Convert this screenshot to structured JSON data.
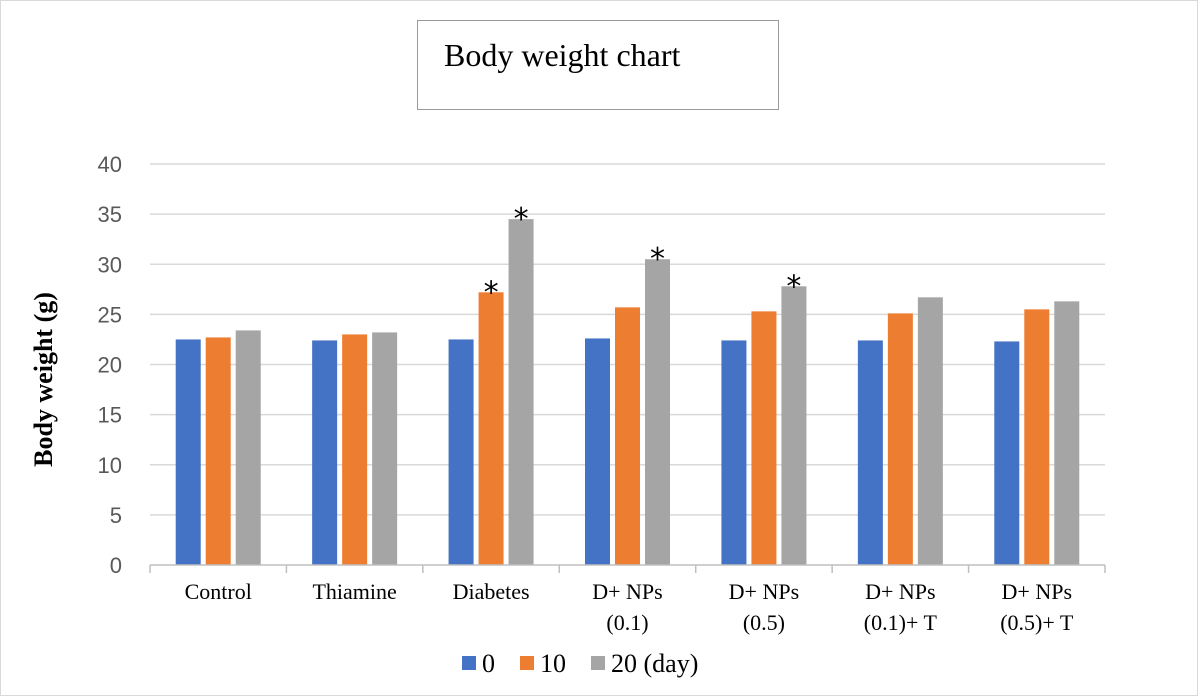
{
  "chart_data": {
    "type": "bar",
    "title": "Body weight chart",
    "xlabel": "",
    "ylabel": "Body weight (g)",
    "ylim": [
      0,
      40
    ],
    "yticks": [
      0,
      5,
      10,
      15,
      20,
      25,
      30,
      35,
      40
    ],
    "grid": true,
    "legend_position": "bottom",
    "categories": [
      [
        "Control"
      ],
      [
        "Thiamine"
      ],
      [
        "Diabetes"
      ],
      [
        "D+ NPs",
        "(0.1)"
      ],
      [
        "D+ NPs",
        "(0.5)"
      ],
      [
        "D+ NPs",
        "(0.1)+ T"
      ],
      [
        "D+ NPs",
        "(0.5)+ T"
      ]
    ],
    "series": [
      {
        "name": "0",
        "color": "#4472c4",
        "values": [
          22.5,
          22.4,
          22.5,
          22.6,
          22.4,
          22.4,
          22.3
        ]
      },
      {
        "name": "10",
        "color": "#ed7d31",
        "values": [
          22.7,
          23.0,
          27.2,
          25.7,
          25.3,
          25.1,
          25.5
        ]
      },
      {
        "name": "20 (day)",
        "color": "#a5a5a5",
        "values": [
          23.4,
          23.2,
          34.5,
          30.5,
          27.8,
          26.7,
          26.3
        ]
      }
    ],
    "annotations": [
      {
        "text": "*",
        "category": 2,
        "series": 1
      },
      {
        "text": "*",
        "category": 2,
        "series": 2
      },
      {
        "text": "*",
        "category": 3,
        "series": 2
      },
      {
        "text": "*",
        "category": 4,
        "series": 2
      }
    ]
  }
}
